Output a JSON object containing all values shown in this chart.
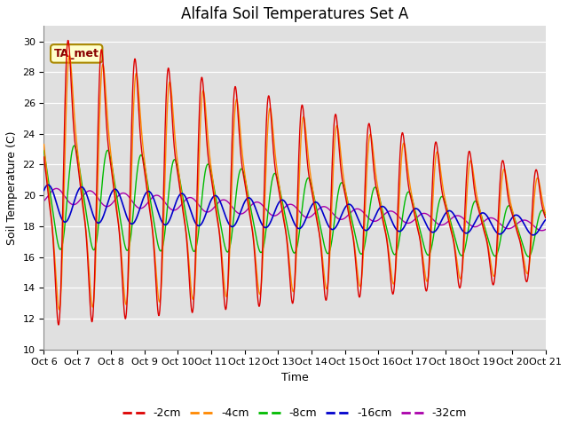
{
  "title": "Alfalfa Soil Temperatures Set A",
  "ylabel": "Soil Temperature (C)",
  "xlabel": "Time",
  "ylim": [
    10,
    31
  ],
  "yticks": [
    10,
    12,
    14,
    16,
    18,
    20,
    22,
    24,
    26,
    28,
    30
  ],
  "x_labels": [
    "Oct 6",
    "Oct 7",
    "Oct 8",
    "Oct 9",
    "Oct 10",
    "Oct 11",
    "Oct 12",
    "Oct 13",
    "Oct 14",
    "Oct 15",
    "Oct 16",
    "Oct 17",
    "Oct 18",
    "Oct 19",
    "Oct 20",
    "Oct 21"
  ],
  "annotation_text": "TA_met",
  "colors": {
    "-2cm": "#dd0000",
    "-4cm": "#ff8800",
    "-8cm": "#00bb00",
    "-16cm": "#0000cc",
    "-32cm": "#aa00aa"
  },
  "legend_labels": [
    "-2cm",
    "-4cm",
    "-8cm",
    "-16cm",
    "-32cm"
  ],
  "background_color": "#e0e0e0",
  "title_fontsize": 12,
  "axis_fontsize": 9,
  "tick_fontsize": 8,
  "legend_fontsize": 9
}
